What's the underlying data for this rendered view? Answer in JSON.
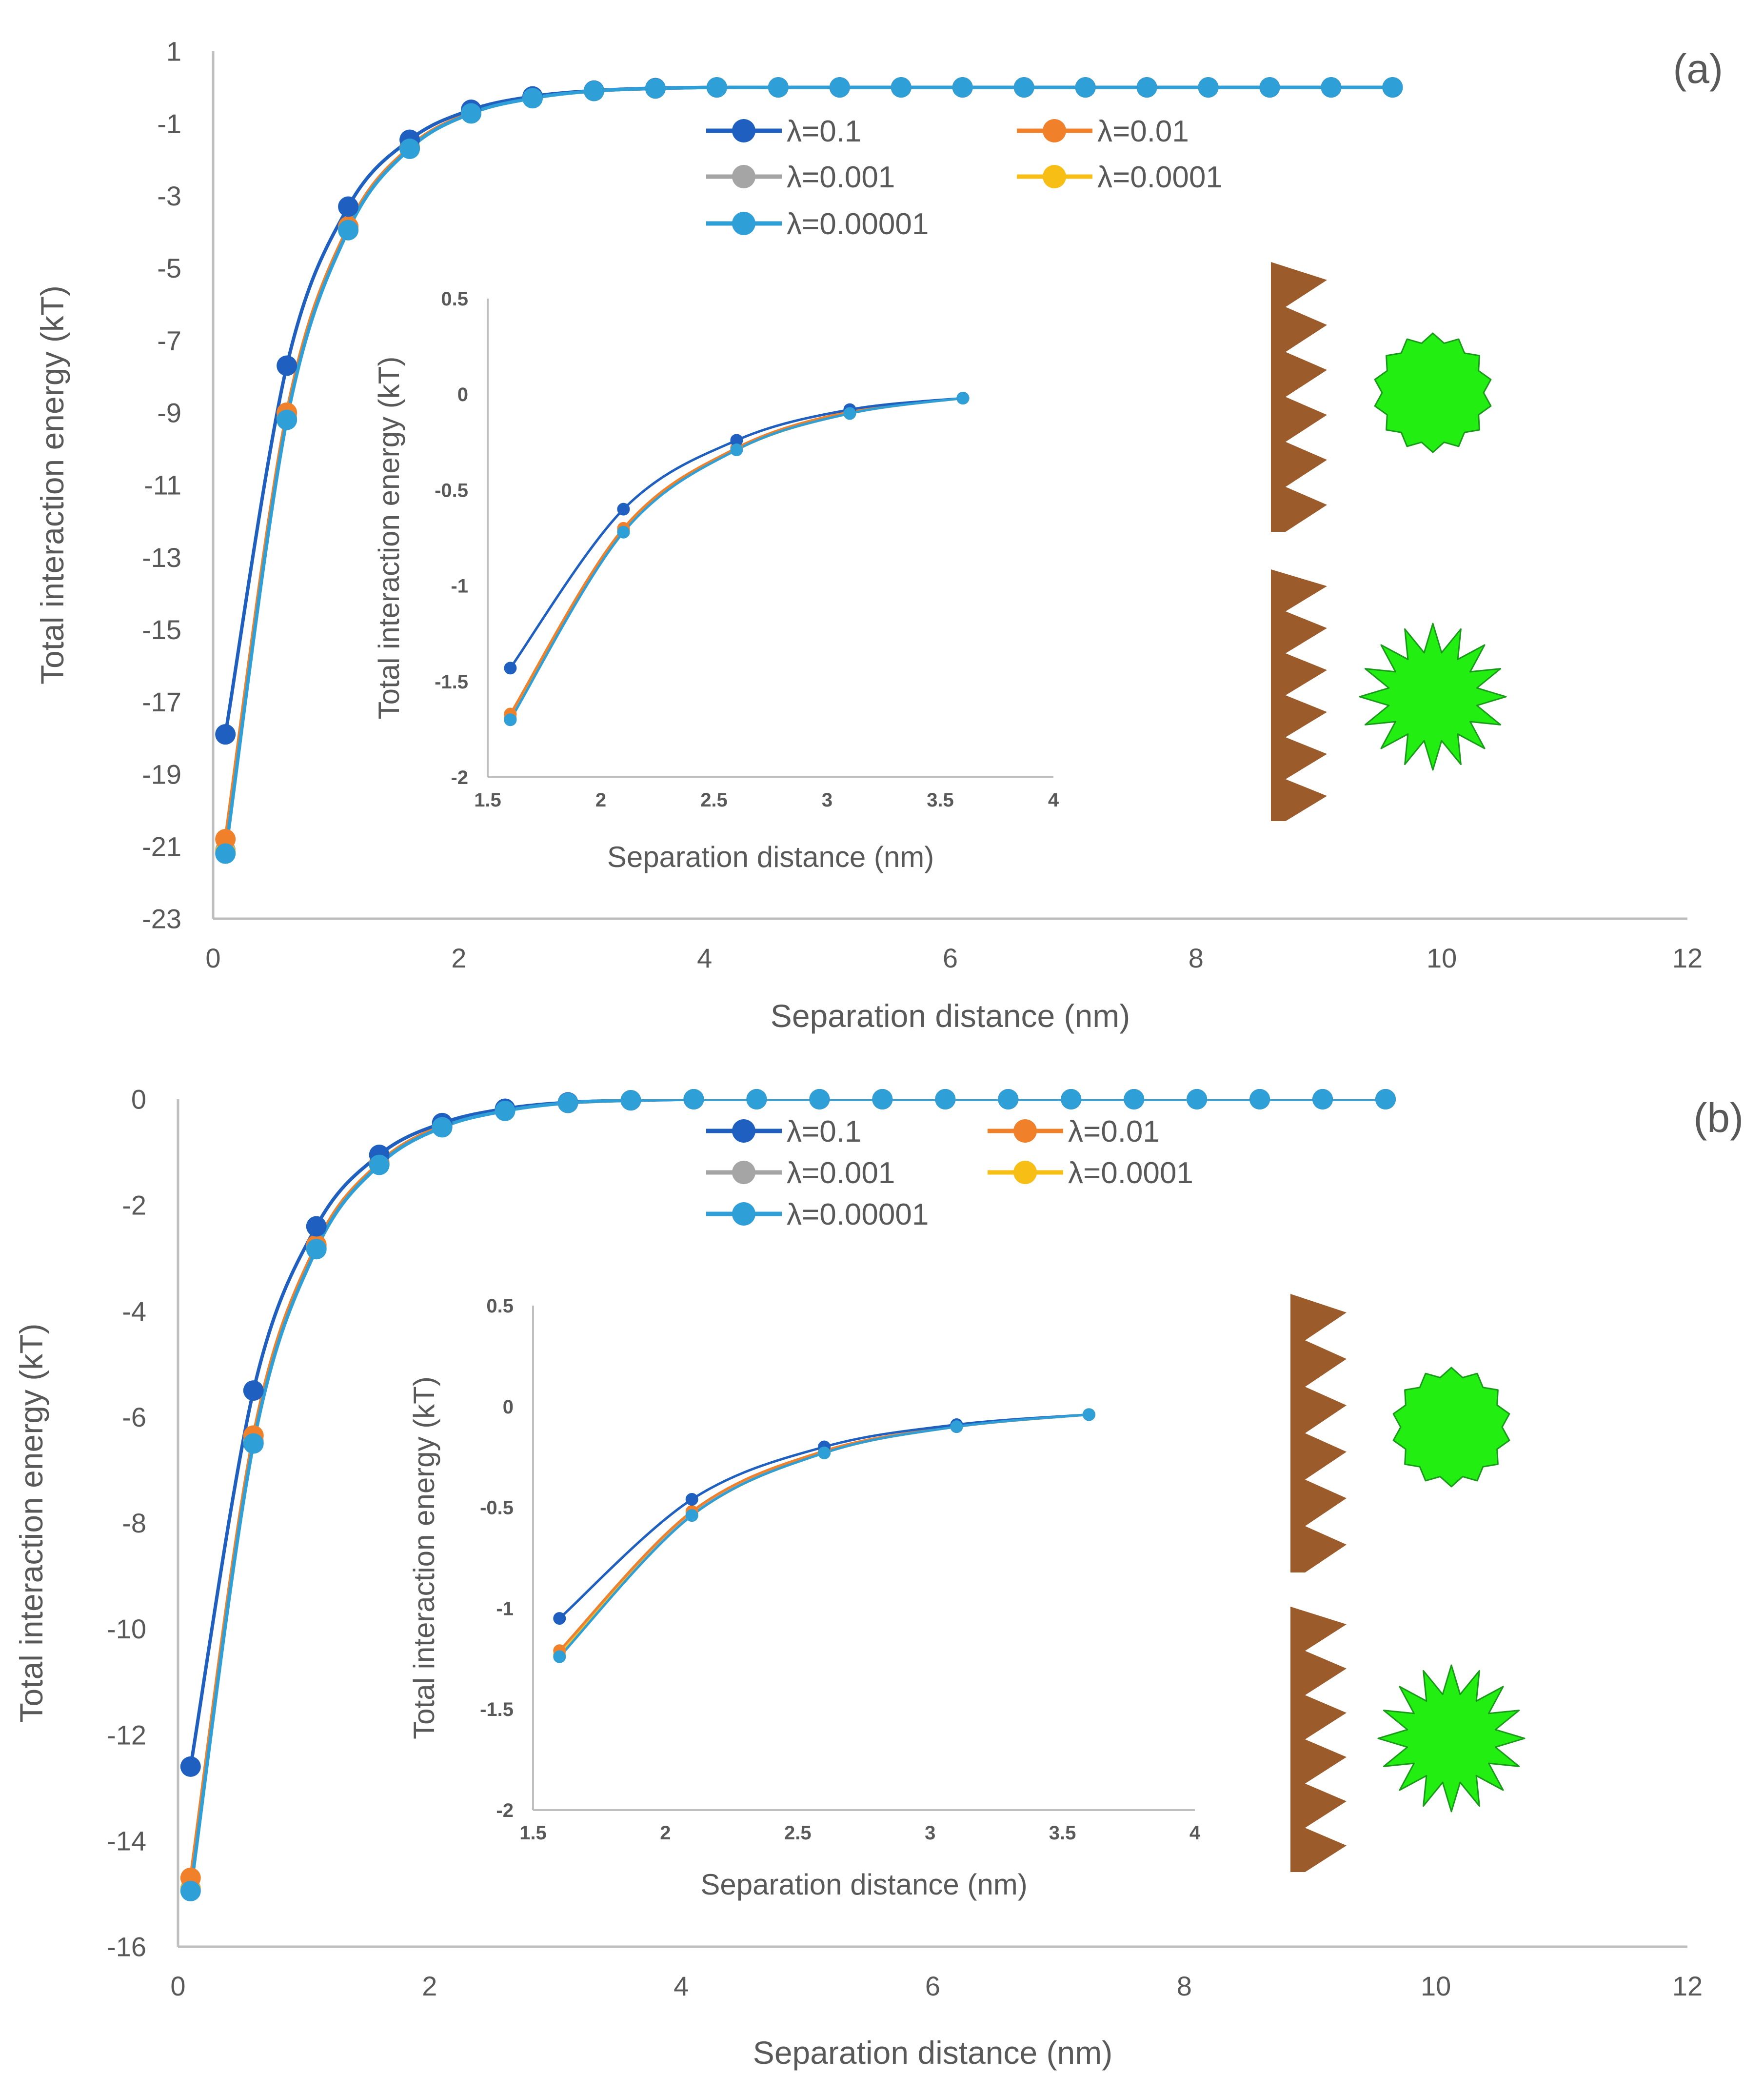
{
  "figure": {
    "colors": {
      "lambda_0_1": "#1f5fbf",
      "lambda_0_01": "#f0802a",
      "lambda_0_001": "#a5a5a5",
      "lambda_0_0001": "#f7be16",
      "lambda_0_00001": "#2f9fd8",
      "axis": "#bfbfbf",
      "text": "#595959",
      "surface": "#9c5b2b",
      "particle": "#22ee11",
      "particle_edge": "#1a9a1a"
    }
  },
  "chart_data": [
    {
      "panel_label": "(a)",
      "type": "line",
      "xlabel": "Separation distance (nm)",
      "ylabel": "Total interaction energy (kT)",
      "xlim": [
        0,
        12
      ],
      "ylim": [
        -23,
        1
      ],
      "x_ticks": [
        "0",
        "2",
        "4",
        "6",
        "8",
        "10",
        "12"
      ],
      "y_ticks": [
        "1",
        "-1",
        "-3",
        "-5",
        "-7",
        "-9",
        "-11",
        "-13",
        "-15",
        "-17",
        "-19",
        "-21",
        "-23"
      ],
      "x": [
        0.1,
        0.6,
        1.1,
        1.6,
        2.1,
        2.6,
        3.1,
        3.6,
        4.1,
        4.6,
        5.1,
        5.6,
        6.1,
        6.6,
        7.1,
        7.6,
        8.1,
        8.6,
        9.1,
        9.6
      ],
      "series": [
        {
          "name": "λ=0.1",
          "values": [
            -17.9,
            -7.7,
            -3.3,
            -1.45,
            -0.62,
            -0.25,
            -0.09,
            -0.02,
            0,
            0,
            0,
            0,
            0,
            0,
            0,
            0,
            0,
            0,
            0,
            0
          ]
        },
        {
          "name": "λ=0.01",
          "values": [
            -20.8,
            -9.0,
            -3.85,
            -1.65,
            -0.7,
            -0.28,
            -0.1,
            -0.03,
            0,
            0,
            0,
            0,
            0,
            0,
            0,
            0,
            0,
            0,
            0,
            0
          ]
        },
        {
          "name": "λ=0.001",
          "values": [
            -21.1,
            -9.15,
            -3.9,
            -1.68,
            -0.71,
            -0.29,
            -0.1,
            -0.03,
            0,
            0,
            0,
            0,
            0,
            0,
            0,
            0,
            0,
            0,
            0,
            0
          ]
        },
        {
          "name": "λ=0.0001",
          "values": [
            -21.15,
            -9.18,
            -3.92,
            -1.69,
            -0.72,
            -0.29,
            -0.1,
            -0.03,
            0,
            0,
            0,
            0,
            0,
            0,
            0,
            0,
            0,
            0,
            0,
            0
          ]
        },
        {
          "name": "λ=0.00001",
          "values": [
            -21.2,
            -9.2,
            -3.95,
            -1.7,
            -0.72,
            -0.3,
            -0.1,
            -0.03,
            0,
            0,
            0,
            0,
            0,
            0,
            0,
            0,
            0,
            0,
            0,
            0
          ]
        }
      ],
      "inset": {
        "xlabel": "Separation distance (nm)",
        "ylabel": "Total interaction energy (kT)",
        "xlim": [
          1.5,
          4
        ],
        "ylim": [
          -2,
          0.5
        ],
        "x_ticks": [
          "1.5",
          "2",
          "2.5",
          "3",
          "3.5",
          "4"
        ],
        "y_ticks": [
          "0.5",
          "0",
          "-0.5",
          "-1",
          "-1.5",
          "-2"
        ],
        "x": [
          1.6,
          2.1,
          2.6,
          3.1,
          3.6
        ],
        "series": [
          {
            "name": "λ=0.1",
            "values": [
              -1.43,
              -0.6,
              -0.24,
              -0.08,
              -0.02
            ]
          },
          {
            "name": "λ=0.01",
            "values": [
              -1.67,
              -0.7,
              -0.28,
              -0.09,
              -0.02
            ]
          },
          {
            "name": "λ=0.001",
            "values": [
              -1.69,
              -0.71,
              -0.28,
              -0.1,
              -0.02
            ]
          },
          {
            "name": "λ=0.0001",
            "values": [
              -1.7,
              -0.71,
              -0.29,
              -0.1,
              -0.02
            ]
          },
          {
            "name": "λ=0.00001",
            "values": [
              -1.7,
              -0.72,
              -0.29,
              -0.1,
              -0.02
            ]
          }
        ]
      }
    },
    {
      "panel_label": "(b)",
      "type": "line",
      "xlabel": "Separation distance (nm)",
      "ylabel": "Total interaction energy (kT)",
      "xlim": [
        0,
        12
      ],
      "ylim": [
        -16,
        0
      ],
      "x_ticks": [
        "0",
        "2",
        "4",
        "6",
        "8",
        "10",
        "12"
      ],
      "y_ticks": [
        "0",
        "-2",
        "-4",
        "-6",
        "-8",
        "-10",
        "-12",
        "-14",
        "-16"
      ],
      "x": [
        0.1,
        0.6,
        1.1,
        1.6,
        2.1,
        2.6,
        3.1,
        3.6,
        4.1,
        4.6,
        5.1,
        5.6,
        6.1,
        6.6,
        7.1,
        7.6,
        8.1,
        8.6,
        9.1,
        9.6
      ],
      "series": [
        {
          "name": "λ=0.1",
          "values": [
            -12.6,
            -5.5,
            -2.4,
            -1.05,
            -0.45,
            -0.18,
            -0.06,
            -0.02,
            0,
            0,
            0,
            0,
            0,
            0,
            0,
            0,
            0,
            0,
            0,
            0
          ]
        },
        {
          "name": "λ=0.01",
          "values": [
            -14.7,
            -6.35,
            -2.75,
            -1.2,
            -0.5,
            -0.2,
            -0.07,
            -0.02,
            0,
            0,
            0,
            0,
            0,
            0,
            0,
            0,
            0,
            0,
            0,
            0
          ]
        },
        {
          "name": "λ=0.001",
          "values": [
            -14.9,
            -6.45,
            -2.8,
            -1.22,
            -0.52,
            -0.21,
            -0.07,
            -0.02,
            0,
            0,
            0,
            0,
            0,
            0,
            0,
            0,
            0,
            0,
            0,
            0
          ]
        },
        {
          "name": "λ=0.0001",
          "values": [
            -14.92,
            -6.48,
            -2.82,
            -1.23,
            -0.52,
            -0.21,
            -0.07,
            -0.02,
            0,
            0,
            0,
            0,
            0,
            0,
            0,
            0,
            0,
            0,
            0,
            0
          ]
        },
        {
          "name": "λ=0.00001",
          "values": [
            -14.95,
            -6.5,
            -2.83,
            -1.24,
            -0.53,
            -0.22,
            -0.07,
            -0.02,
            0,
            0,
            0,
            0,
            0,
            0,
            0,
            0,
            0,
            0,
            0,
            0
          ]
        }
      ],
      "inset": {
        "xlabel": "Separation distance (nm)",
        "ylabel": "Total interaction energy (kT)",
        "xlim": [
          1.5,
          4
        ],
        "ylim": [
          -2,
          0.5
        ],
        "x_ticks": [
          "1.5",
          "2",
          "2.5",
          "3",
          "3.5",
          "4"
        ],
        "y_ticks": [
          "0.5",
          "0",
          "-0.5",
          "-1",
          "-1.5",
          "-2"
        ],
        "x": [
          1.6,
          2.1,
          2.6,
          3.1,
          3.6
        ],
        "series": [
          {
            "name": "λ=0.1",
            "values": [
              -1.05,
              -0.46,
              -0.2,
              -0.09,
              -0.04
            ]
          },
          {
            "name": "λ=0.01",
            "values": [
              -1.21,
              -0.52,
              -0.22,
              -0.1,
              -0.04
            ]
          },
          {
            "name": "λ=0.001",
            "values": [
              -1.23,
              -0.53,
              -0.23,
              -0.1,
              -0.04
            ]
          },
          {
            "name": "λ=0.0001",
            "values": [
              -1.23,
              -0.54,
              -0.23,
              -0.1,
              -0.04
            ]
          },
          {
            "name": "λ=0.00001",
            "values": [
              -1.24,
              -0.54,
              -0.23,
              -0.1,
              -0.04
            ]
          }
        ]
      }
    }
  ]
}
